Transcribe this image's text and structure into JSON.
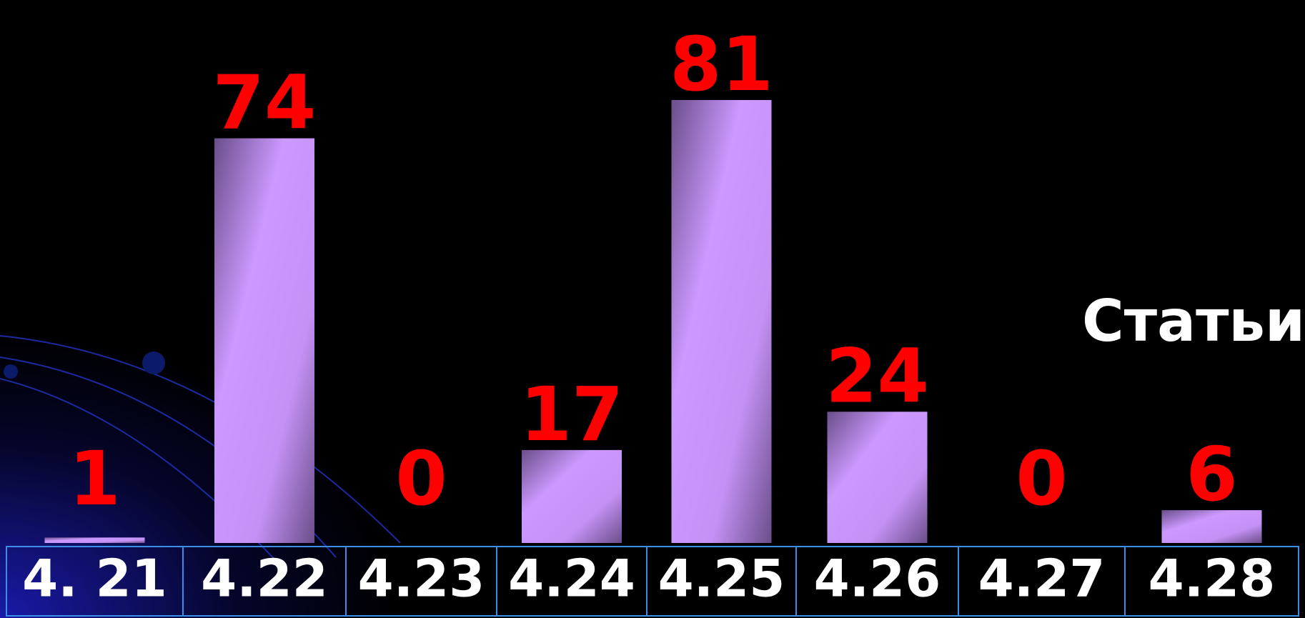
{
  "chart_data": {
    "type": "bar",
    "categories": [
      "4. 21",
      "4.22",
      "4.23",
      "4.24",
      "4.25",
      "4.26",
      "4.27",
      "4.28"
    ],
    "values": [
      1,
      74,
      0,
      17,
      81,
      24,
      0,
      6
    ],
    "color": "#cc99ff",
    "label_color": "#ff0000",
    "annotation": "Статьи"
  }
}
